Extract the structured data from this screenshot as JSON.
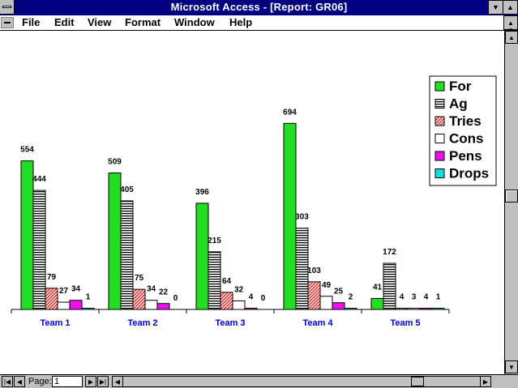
{
  "window": {
    "title": "Microsoft Access - [Report: GR06]"
  },
  "menu": {
    "items": [
      "File",
      "Edit",
      "View",
      "Format",
      "Window",
      "Help"
    ]
  },
  "nav": {
    "page_label": "Page:",
    "page_value": "1"
  },
  "colors": {
    "titlebar": "#000080",
    "for": "#22dd22",
    "pens": "#ee11ee",
    "drops": "#11dddd",
    "tries": "#cc3333",
    "team_label": "#0000cc"
  },
  "chart_data": {
    "type": "bar",
    "categories": [
      "Team 1",
      "Team 2",
      "Team 3",
      "Team 4",
      "Team 5"
    ],
    "series": [
      {
        "name": "For",
        "values": [
          554,
          509,
          396,
          694,
          41
        ]
      },
      {
        "name": "Ag",
        "values": [
          444,
          405,
          215,
          303,
          172
        ]
      },
      {
        "name": "Tries",
        "values": [
          79,
          75,
          64,
          103,
          4
        ]
      },
      {
        "name": "Cons",
        "values": [
          27,
          34,
          32,
          49,
          3
        ]
      },
      {
        "name": "Pens",
        "values": [
          34,
          22,
          4,
          25,
          4
        ]
      },
      {
        "name": "Drops",
        "values": [
          1,
          0,
          0,
          2,
          1
        ]
      }
    ],
    "legend_position": "top-right",
    "grid": false
  }
}
